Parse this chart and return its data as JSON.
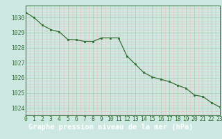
{
  "x": [
    0,
    1,
    2,
    3,
    4,
    5,
    6,
    7,
    8,
    9,
    10,
    11,
    12,
    13,
    14,
    15,
    16,
    17,
    18,
    19,
    20,
    21,
    22,
    23
  ],
  "y": [
    1030.35,
    1030.0,
    1029.5,
    1029.2,
    1029.05,
    1028.55,
    1028.52,
    1028.42,
    1028.42,
    1028.65,
    1028.65,
    1028.65,
    1027.45,
    1026.9,
    1026.35,
    1026.05,
    1025.9,
    1025.75,
    1025.5,
    1025.3,
    1024.85,
    1024.75,
    1024.35,
    1024.05
  ],
  "xlim": [
    0,
    23
  ],
  "ylim": [
    1023.5,
    1030.8
  ],
  "yticks": [
    1024,
    1025,
    1026,
    1027,
    1028,
    1029,
    1030
  ],
  "xticks": [
    0,
    1,
    2,
    3,
    4,
    5,
    6,
    7,
    8,
    9,
    10,
    11,
    12,
    13,
    14,
    15,
    16,
    17,
    18,
    19,
    20,
    21,
    22,
    23
  ],
  "xlabel": "Graphe pression niveau de la mer (hPa)",
  "line_color": "#2d6a2d",
  "marker_color": "#2d6a2d",
  "bg_color": "#cce8e0",
  "grid_major_color": "#b0c8b0",
  "grid_minor_color": "#e8c0c0",
  "xlabel_fontsize": 7.5,
  "tick_fontsize": 5.8,
  "ytick_fontsize": 5.8
}
